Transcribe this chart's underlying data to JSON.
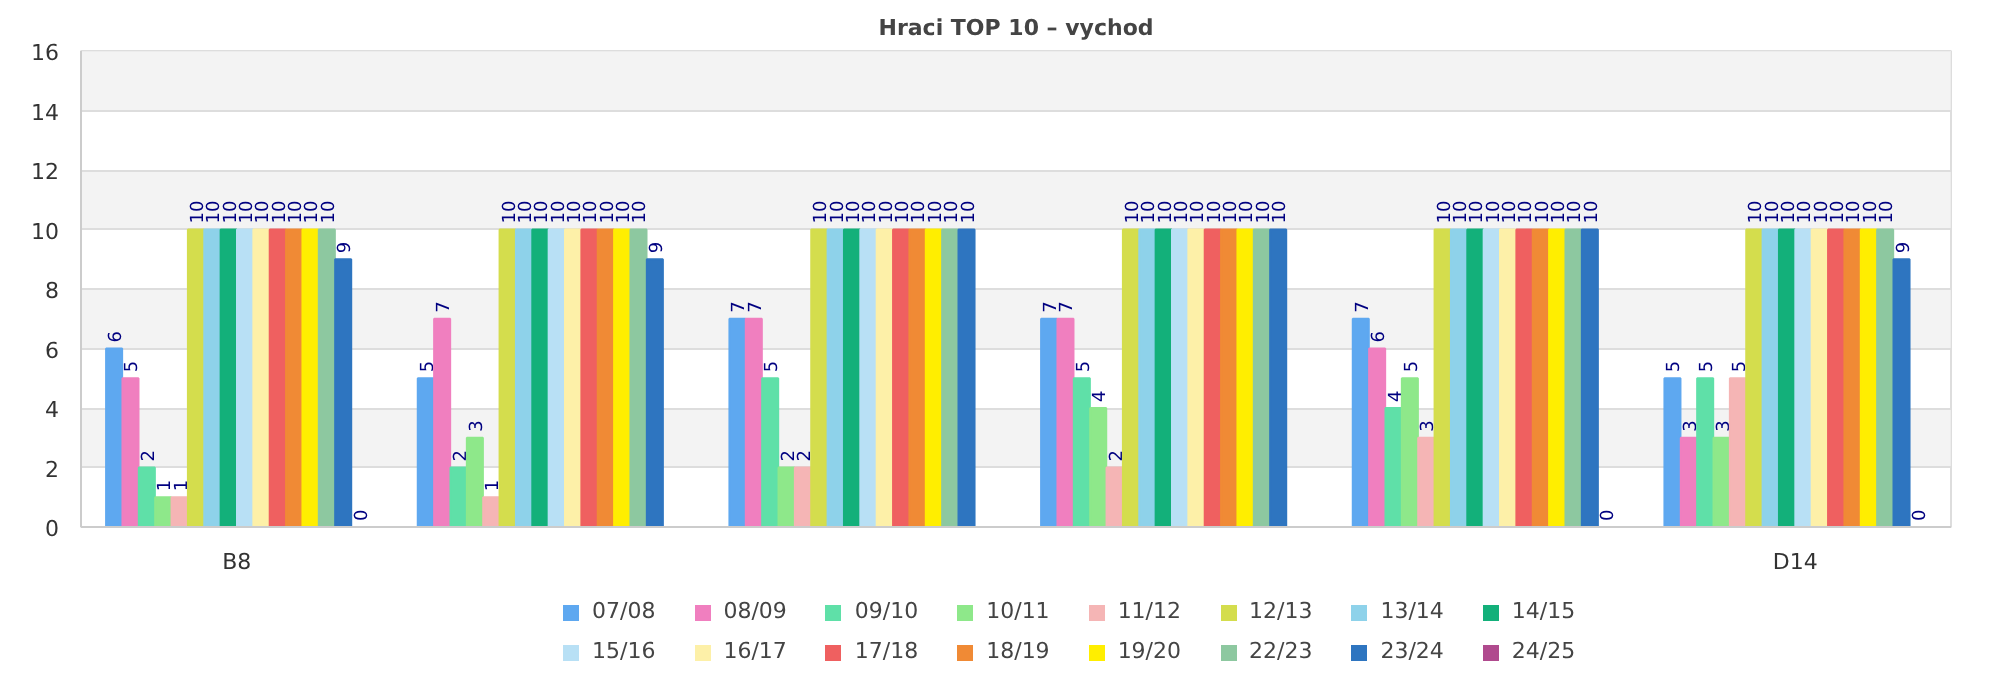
{
  "chart_data": {
    "type": "bar",
    "title": "Hraci TOP 10 – vychod",
    "categories": [
      "B8",
      null,
      null,
      null,
      null,
      "D14"
    ],
    "ylim": [
      0,
      16
    ],
    "yticks": [
      0,
      2,
      4,
      6,
      8,
      10,
      12,
      14,
      16
    ],
    "grid": "y",
    "legend": "bottom",
    "data_labels": true,
    "series": [
      {
        "name": "07/08",
        "color": "#5ea8f0",
        "values": [
          6,
          5,
          7,
          7,
          7,
          5
        ]
      },
      {
        "name": "08/09",
        "color": "#f07fbf",
        "values": [
          5,
          7,
          7,
          7,
          6,
          3
        ]
      },
      {
        "name": "09/10",
        "color": "#5fe0a8",
        "values": [
          2,
          2,
          5,
          5,
          4,
          5
        ]
      },
      {
        "name": "10/11",
        "color": "#8ee88a",
        "values": [
          1,
          3,
          2,
          4,
          5,
          3
        ]
      },
      {
        "name": "11/12",
        "color": "#f5b5b5",
        "values": [
          1,
          1,
          2,
          2,
          3,
          5
        ]
      },
      {
        "name": "12/13",
        "color": "#d4dd4d",
        "values": [
          10,
          10,
          10,
          10,
          10,
          10
        ]
      },
      {
        "name": "13/14",
        "color": "#8ed2ea",
        "values": [
          10,
          10,
          10,
          10,
          10,
          10
        ]
      },
      {
        "name": "14/15",
        "color": "#13b07a",
        "values": [
          10,
          10,
          10,
          10,
          10,
          10
        ]
      },
      {
        "name": "15/16",
        "color": "#b8e0f5",
        "values": [
          10,
          10,
          10,
          10,
          10,
          10
        ]
      },
      {
        "name": "16/17",
        "color": "#fdf0a8",
        "values": [
          10,
          10,
          10,
          10,
          10,
          10
        ]
      },
      {
        "name": "17/18",
        "color": "#ef6060",
        "values": [
          10,
          10,
          10,
          10,
          10,
          10
        ]
      },
      {
        "name": "18/19",
        "color": "#f08a35",
        "values": [
          10,
          10,
          10,
          10,
          10,
          10
        ]
      },
      {
        "name": "19/20",
        "color": "#ffee00",
        "values": [
          10,
          10,
          10,
          10,
          10,
          10
        ]
      },
      {
        "name": "22/23",
        "color": "#8dc8a0",
        "values": [
          10,
          10,
          10,
          10,
          10,
          10
        ]
      },
      {
        "name": "23/24",
        "color": "#2e75c0",
        "values": [
          9,
          9,
          10,
          10,
          10,
          9
        ]
      },
      {
        "name": "24/25",
        "color": "#b04a8e",
        "values": [
          0,
          null,
          null,
          null,
          0,
          0
        ]
      }
    ]
  }
}
